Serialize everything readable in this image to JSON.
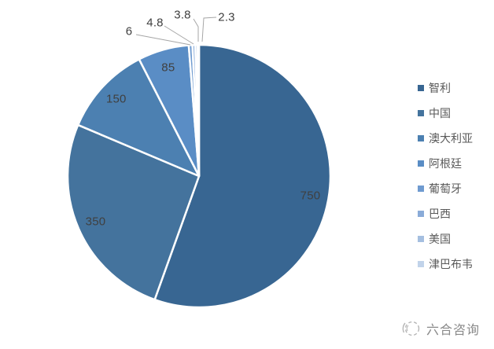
{
  "chart_data": {
    "type": "pie",
    "categories": [
      "智利",
      "中国",
      "澳大利亚",
      "阿根廷",
      "葡萄牙",
      "巴西",
      "美国",
      "津巴布韦"
    ],
    "values": [
      750,
      350,
      150,
      85,
      6,
      4.8,
      3.8,
      2.3
    ],
    "labels": [
      "750",
      "350",
      "150",
      "85",
      "6",
      "4.8",
      "3.8",
      "2.3"
    ],
    "colors": [
      "#386692",
      "#44739D",
      "#4C80B1",
      "#5A8DC5",
      "#6F9BD0",
      "#8AABD8",
      "#A5BFE0",
      "#C1D3EA"
    ],
    "title": "",
    "legend_position": "right",
    "legend_text_color": "#595959",
    "data_label_color": "#404040",
    "leader_line_color": "#A6A6A6",
    "slice_border_color": "#FFFFFF",
    "start_angle_deg": 0,
    "direction": "clockwise"
  },
  "watermark": {
    "text": "六合咨询",
    "color": "#8a8a8a"
  }
}
